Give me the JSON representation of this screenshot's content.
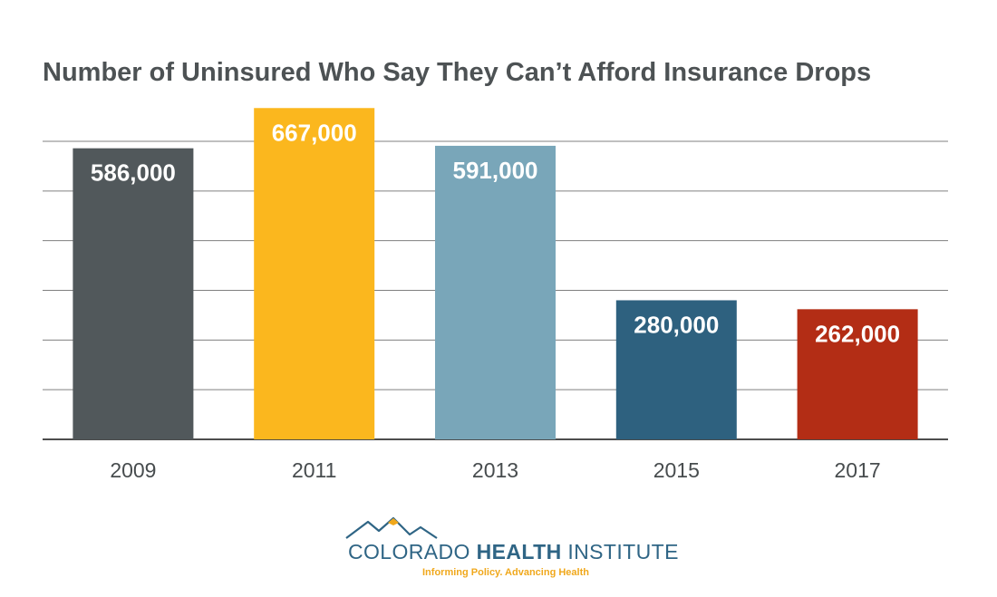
{
  "chart_data": {
    "type": "bar",
    "title": "Number of Uninsured Who Say They Can’t Afford Insurance Drops",
    "categories": [
      "2009",
      "2011",
      "2013",
      "2015",
      "2017"
    ],
    "values": [
      586000,
      667000,
      591000,
      280000,
      262000
    ],
    "value_labels": [
      "586,000",
      "667,000",
      "591,000",
      "280,000",
      "262,000"
    ],
    "bar_colors": [
      "#51585b",
      "#fbb71e",
      "#79a6b9",
      "#2e617f",
      "#b32d15"
    ],
    "ylim": [
      0,
      600000
    ],
    "grid": true,
    "gridline_color": "#808080",
    "data_label_color": "#ffffff",
    "tick_label_color": "#474c4e"
  },
  "branding": {
    "org_name_light": "COLORADO ",
    "org_name_bold": "HEALTH",
    "org_name_end": " INSTITUTE",
    "tagline": "Informing Policy. Advancing Health",
    "logo_primary_color": "#2f6585",
    "logo_accent_color": "#f0a81c"
  }
}
